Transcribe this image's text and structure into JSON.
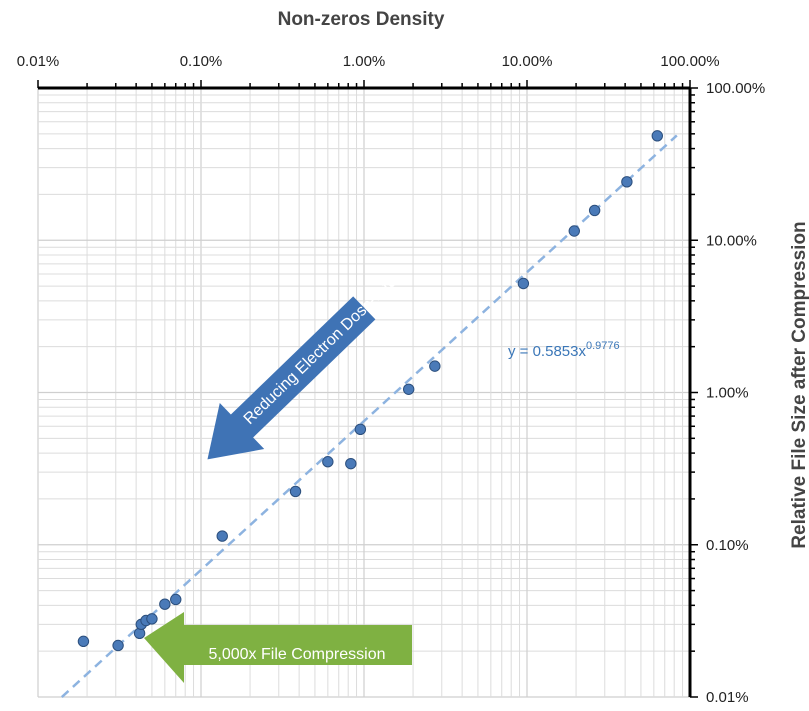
{
  "chart_data": {
    "type": "scatter",
    "xlabel": "Non-zeros Density",
    "ylabel": "Relative File Size after Compression",
    "x_scale": "log",
    "y_scale": "log",
    "xlim": [
      0.0001,
      1.0
    ],
    "ylim": [
      0.0001,
      1.0
    ],
    "x_ticks": [
      "0.01%",
      "0.10%",
      "1.00%",
      "10.00%",
      "100.00%"
    ],
    "y_ticks": [
      "100.00%",
      "10.00%",
      "1.00%",
      "0.10%",
      "0.01%"
    ],
    "x_axis_position": "top",
    "y_axis_position": "right",
    "grid": true,
    "x": [
      0.00019,
      0.00031,
      0.00042,
      0.00043,
      0.00046,
      0.0005,
      0.0006,
      0.0007,
      0.00135,
      0.0038,
      0.006,
      0.0083,
      0.0095,
      0.0188,
      0.0272,
      0.095,
      0.195,
      0.26,
      0.41,
      0.63
    ],
    "y": [
      0.000232,
      0.000218,
      0.000262,
      0.0003,
      0.000318,
      0.000326,
      0.000407,
      0.000437,
      0.00114,
      0.00224,
      0.00351,
      0.00341,
      0.00573,
      0.0105,
      0.0149,
      0.052,
      0.115,
      0.157,
      0.242,
      0.485
    ],
    "trendline": {
      "type": "power",
      "coef": 0.5853,
      "exponent": 0.9776,
      "label_main": "y = 0.5853x",
      "label_exp": "0.9776"
    },
    "annotations": {
      "blue_arrow": "Reducing Electron Dose-rate",
      "green_arrow": "5,000x File Compression"
    },
    "colors": {
      "points": "#4a7ab8",
      "point_outline": "#2c4f7d",
      "trendline": "#8db3e0",
      "blue_arrow": "#3f73b5",
      "green_arrow": "#7fb142",
      "grid": "#dcdcdc"
    }
  }
}
